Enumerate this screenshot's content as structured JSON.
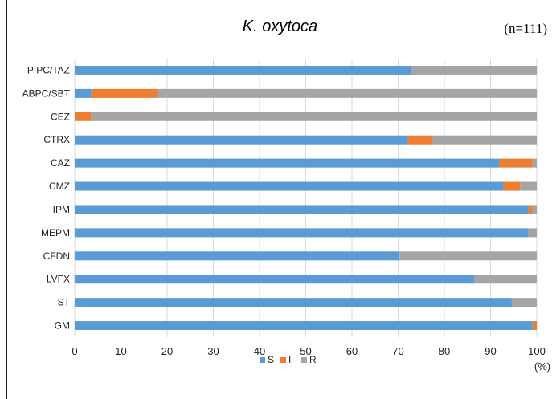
{
  "chart_data": {
    "type": "bar",
    "stacked": true,
    "orientation": "horizontal",
    "title": "K. oxytoca",
    "subtitle": "(n=111)",
    "xlabel": "(%)",
    "ylabel": "",
    "xlim": [
      0,
      100
    ],
    "xticks": [
      "0",
      "10",
      "20",
      "30",
      "40",
      "50",
      "60",
      "70",
      "80",
      "90",
      "100"
    ],
    "grid": "vertical",
    "legend_position": "bottom",
    "categories": [
      "PIPC/TAZ",
      "ABPC/SBT",
      "CEZ",
      "CTRX",
      "CAZ",
      "CMZ",
      "IPM",
      "MEPM",
      "CFDN",
      "LVFX",
      "ST",
      "GM"
    ],
    "series": [
      {
        "name": "S",
        "color": "#5b9bd5",
        "values": [
          73,
          3.6,
          0,
          72.1,
          91.9,
          92.8,
          98.2,
          98.2,
          70.3,
          86.5,
          94.6,
          99.1
        ]
      },
      {
        "name": "I",
        "color": "#ed7d31",
        "values": [
          0,
          14.4,
          3.6,
          5.4,
          7.2,
          3.6,
          0.9,
          0,
          0,
          0,
          0,
          0.9
        ]
      },
      {
        "name": "R",
        "color": "#a5a5a5",
        "values": [
          27,
          82,
          96.4,
          22.5,
          0.9,
          3.6,
          0.9,
          1.8,
          29.7,
          13.5,
          5.4,
          0
        ]
      }
    ]
  }
}
